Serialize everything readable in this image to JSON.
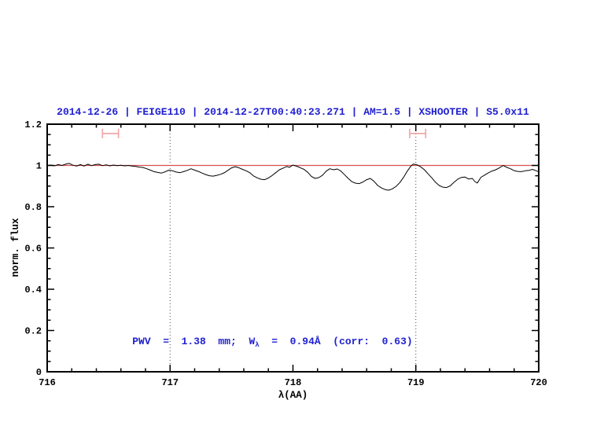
{
  "chart_data": {
    "type": "line",
    "title": "2014-12-26 | FEIGE110 | 2014-12-27T00:40:23.271 | AM=1.5 | XSHOOTER | S5.0x11",
    "xlabel": "λ(AA)",
    "ylabel": "norm. flux",
    "annotation": {
      "part1": "PWV  =  1.38  mm;  W",
      "sub": "λ",
      "part2": "  =  0.94Å  (corr:  0.63)"
    },
    "xlim": [
      716,
      720
    ],
    "ylim": [
      0,
      1.2
    ],
    "x_major_ticks": [
      716,
      717,
      718,
      719,
      720
    ],
    "x_tick_labels": [
      "716",
      "717",
      "718",
      "719",
      "720"
    ],
    "x_minor_step": 0.2,
    "y_major_ticks": [
      0,
      0.2,
      0.4,
      0.6,
      0.8,
      1,
      1.2
    ],
    "y_tick_labels": [
      "0",
      "0.2",
      "0.4",
      "0.6",
      "0.8",
      "1",
      "1.2"
    ],
    "y_minor_step": 0.05,
    "grid": false,
    "legend": "none",
    "guide_lines_x": [
      717,
      719
    ],
    "continuum_y": 1.0,
    "range_markers": [
      {
        "x1": 716.45,
        "x2": 716.58,
        "y": 1.155,
        "cap_halfheight": 0.023
      },
      {
        "x1": 718.95,
        "x2": 719.08,
        "y": 1.155,
        "cap_halfheight": 0.023
      }
    ],
    "colors": {
      "spectrum": "#000000",
      "continuum": "#d94f4f",
      "range_marker": "#f2a2a2",
      "guide": "#444444",
      "title_text": "#1f1fd0",
      "annotation_text": "#1f1fd0",
      "axis": "#000000"
    },
    "series": [
      {
        "name": "normalized flux spectrum",
        "x": [
          716.0,
          716.03,
          716.06,
          716.09,
          716.12,
          716.15,
          716.18,
          716.21,
          716.24,
          716.27,
          716.3,
          716.33,
          716.36,
          716.39,
          716.42,
          716.45,
          716.48,
          716.51,
          716.54,
          716.57,
          716.6,
          716.63,
          716.66,
          716.69,
          716.72,
          716.75,
          716.78,
          716.81,
          716.84,
          716.87,
          716.9,
          716.93,
          716.96,
          716.99,
          717.02,
          717.05,
          717.08,
          717.11,
          717.14,
          717.17,
          717.2,
          717.23,
          717.26,
          717.29,
          717.32,
          717.35,
          717.38,
          717.41,
          717.44,
          717.47,
          717.5,
          717.53,
          717.56,
          717.59,
          717.62,
          717.65,
          717.68,
          717.71,
          717.74,
          717.77,
          717.8,
          717.83,
          717.86,
          717.89,
          717.92,
          717.95,
          717.97,
          718.0,
          718.03,
          718.06,
          718.09,
          718.12,
          718.15,
          718.18,
          718.21,
          718.24,
          718.27,
          718.3,
          718.33,
          718.36,
          718.39,
          718.42,
          718.45,
          718.48,
          718.51,
          718.54,
          718.57,
          718.6,
          718.63,
          718.66,
          718.69,
          718.72,
          718.75,
          718.78,
          718.81,
          718.84,
          718.87,
          718.9,
          718.93,
          718.96,
          718.98,
          719.01,
          719.04,
          719.07,
          719.1,
          719.13,
          719.16,
          719.19,
          719.22,
          719.25,
          719.28,
          719.31,
          719.34,
          719.37,
          719.4,
          719.43,
          719.46,
          719.48,
          719.5,
          719.53,
          719.56,
          719.59,
          719.62,
          719.65,
          719.68,
          719.71,
          719.74,
          719.77,
          719.8,
          719.83,
          719.86,
          719.89,
          719.92,
          719.95,
          719.98,
          720.0
        ],
        "y": [
          1.0,
          1.002,
          0.998,
          1.004,
          1.0,
          1.006,
          1.01,
          1.001,
          0.997,
          1.004,
          0.997,
          1.006,
          0.999,
          1.004,
          1.006,
          0.999,
          1.003,
          0.998,
          1.002,
          0.999,
          1.001,
          0.998,
          1.0,
          0.997,
          0.995,
          0.992,
          0.99,
          0.984,
          0.977,
          0.97,
          0.966,
          0.963,
          0.969,
          0.977,
          0.974,
          0.968,
          0.965,
          0.97,
          0.976,
          0.984,
          0.977,
          0.971,
          0.963,
          0.956,
          0.95,
          0.948,
          0.952,
          0.957,
          0.964,
          0.976,
          0.988,
          0.994,
          0.989,
          0.981,
          0.974,
          0.964,
          0.949,
          0.94,
          0.933,
          0.931,
          0.939,
          0.951,
          0.965,
          0.979,
          0.987,
          0.995,
          0.991,
          1.002,
          0.996,
          0.989,
          0.981,
          0.967,
          0.947,
          0.937,
          0.941,
          0.952,
          0.972,
          0.984,
          0.979,
          0.983,
          0.973,
          0.955,
          0.937,
          0.921,
          0.914,
          0.912,
          0.92,
          0.931,
          0.937,
          0.923,
          0.903,
          0.891,
          0.883,
          0.88,
          0.887,
          0.899,
          0.917,
          0.942,
          0.972,
          0.997,
          1.007,
          1.003,
          0.993,
          0.979,
          0.959,
          0.94,
          0.919,
          0.903,
          0.895,
          0.893,
          0.901,
          0.918,
          0.933,
          0.942,
          0.944,
          0.934,
          0.937,
          0.922,
          0.915,
          0.943,
          0.953,
          0.964,
          0.973,
          0.979,
          0.988,
          1.0,
          0.991,
          0.984,
          0.975,
          0.971,
          0.97,
          0.974,
          0.976,
          0.981,
          0.974,
          0.969
        ]
      }
    ]
  }
}
